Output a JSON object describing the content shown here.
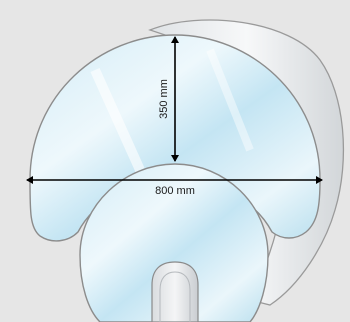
{
  "dimensions": {
    "height_label": "350 mm",
    "width_label": "800 mm"
  },
  "colors": {
    "background": "#e6e6e6",
    "glass_light": "#eef7fb",
    "glass_tint": "#a9d7ea",
    "back_panel": "#e9ecee",
    "outline": "#8c8c8c",
    "dimension_line": "#000000"
  }
}
